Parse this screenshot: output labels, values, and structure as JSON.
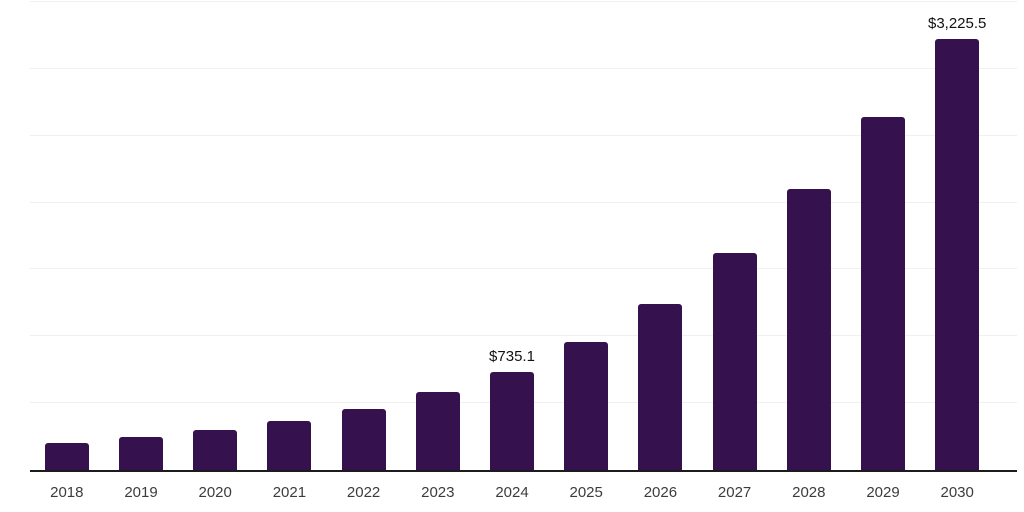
{
  "chart_data": {
    "type": "bar",
    "title": "",
    "xlabel": "",
    "ylabel": "",
    "categories": [
      "2018",
      "2019",
      "2020",
      "2021",
      "2022",
      "2023",
      "2024",
      "2025",
      "2026",
      "2027",
      "2028",
      "2029",
      "2030"
    ],
    "values": [
      200,
      244,
      297,
      364,
      453,
      580,
      735.1,
      954,
      1240,
      1620,
      2100,
      2640,
      3225.5
    ],
    "data_labels": [
      "",
      "",
      "",
      "",
      "",
      "",
      "$735.1",
      "",
      "",
      "",
      "",
      "",
      "$3,225.5"
    ],
    "ylim": [
      0,
      3500
    ],
    "grid_step": 500,
    "grid": "horizontal",
    "legend": "none",
    "y_axis_labels_visible": false,
    "colors": {
      "bar": "#35124e",
      "axis_line": "#1c1c1c",
      "gridline": "#f0f0f1",
      "tick_label": "#3c3c3c",
      "data_label": "#121212",
      "background": "#ffffff"
    }
  }
}
